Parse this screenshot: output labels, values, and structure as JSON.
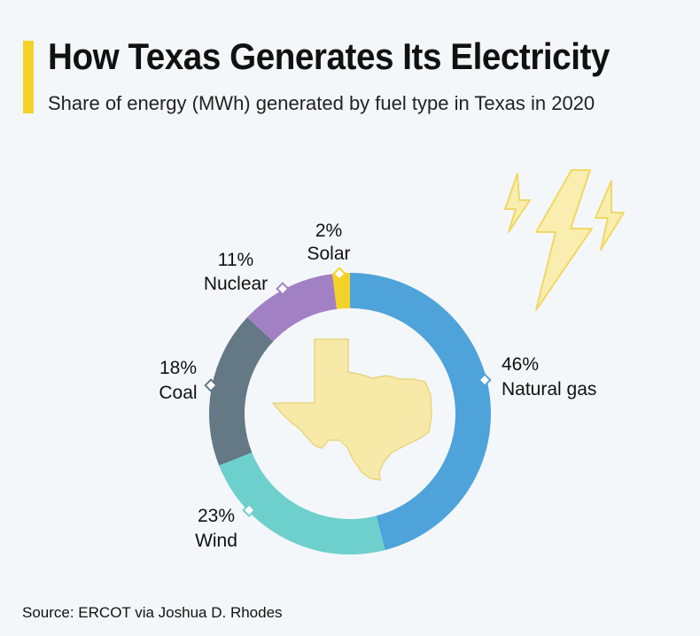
{
  "header": {
    "title": "How Texas Generates Its Electricity",
    "subtitle": "Share of energy (MWh) generated by fuel type in Texas in 2020",
    "accent_color": "#f4d22a"
  },
  "source": "Source: ERCOT via Joshua D. Rhodes",
  "decoration": {
    "center_icon": "texas-map-icon",
    "corner_icon": "lightning-bolts-icon",
    "map_fill": "#f7e9a8",
    "bolt_fill": "#f9eeb0"
  },
  "chart_data": {
    "type": "pie",
    "donut": true,
    "title": "",
    "slices": [
      {
        "name": "Natural gas",
        "value": 46,
        "label": "46%",
        "color": "#4ea3da"
      },
      {
        "name": "Wind",
        "value": 23,
        "label": "23%",
        "color": "#6ed0cd"
      },
      {
        "name": "Coal",
        "value": 18,
        "label": "18%",
        "color": "#647885"
      },
      {
        "name": "Nuclear",
        "value": 11,
        "label": "11%",
        "color": "#a280c4"
      },
      {
        "name": "Solar",
        "value": 2,
        "label": "2%",
        "color": "#f4d22a"
      }
    ]
  }
}
